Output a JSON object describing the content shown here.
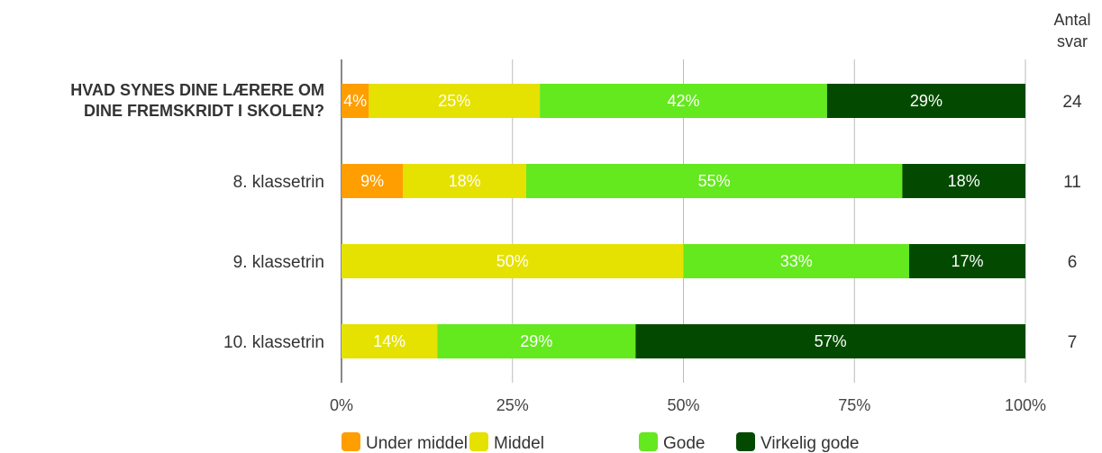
{
  "chart_data": {
    "type": "bar",
    "orientation": "horizontal",
    "stacked": true,
    "categories": [
      "HVAD SYNES DINE LÆRERE OM DINE FREMSKRIDT I SKOLEN?",
      "8. klassetrin",
      "9. klassetrin",
      "10. klassetrin"
    ],
    "category_bold": [
      true,
      false,
      false,
      false
    ],
    "series": [
      {
        "name": "Under middel",
        "color": "#FF9E00",
        "values": [
          4,
          9,
          0,
          0
        ],
        "labels": [
          "4%",
          "9%",
          "",
          ""
        ]
      },
      {
        "name": "Middel",
        "color": "#E5E100",
        "values": [
          25,
          18,
          50,
          14
        ],
        "labels": [
          "25%",
          "18%",
          "50%",
          "14%"
        ]
      },
      {
        "name": "Gode",
        "color": "#64E81E",
        "values": [
          42,
          55,
          33,
          29
        ],
        "labels": [
          "42%",
          "55%",
          "33%",
          "29%"
        ]
      },
      {
        "name": "Virkelig gode",
        "color": "#034A00",
        "values": [
          29,
          18,
          17,
          57
        ],
        "labels": [
          "29%",
          "18%",
          "17%",
          "57%"
        ]
      }
    ],
    "x_ticks": [
      "0%",
      "25%",
      "50%",
      "75%",
      "100%"
    ],
    "xlim": [
      0,
      100
    ],
    "grid": true,
    "legend_position": "bottom",
    "counts_header": [
      "Antal",
      "svar"
    ],
    "counts": [
      "24",
      "11",
      "6",
      "7"
    ]
  }
}
